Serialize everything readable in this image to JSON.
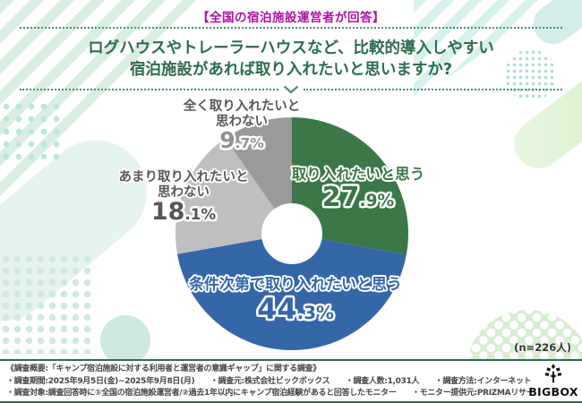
{
  "page": {
    "header_badge": "【全国の宿泊施設運営者が回答】",
    "title_line1": "ログハウスやトレーラーハウスなど、比較的導入しやすい",
    "title_line2": "宿泊施設があれば取り入れたいと思いますか?"
  },
  "chart_data": {
    "type": "pie",
    "subtype": "donut",
    "title": "ログハウスやトレーラーハウスなど、比較的導入しやすい宿泊施設があれば取り入れたいと思いますか?",
    "order": "clockwise-from-top",
    "n_note": "(n=226人)",
    "segments": [
      {
        "label": "取り入れたいと思う",
        "value": 27.9,
        "display": "27.9%",
        "color": "#3c7847"
      },
      {
        "label": "条件次第で取り入れたいと思う",
        "value": 44.3,
        "display": "44.3%",
        "color": "#3566a8"
      },
      {
        "label": "あまり取り入れたいと\n思わない",
        "value": 18.1,
        "display": "18.1%",
        "color": "#bfbfbf"
      },
      {
        "label": "全く取り入れたいと\n思わない",
        "value": 9.7,
        "display": "9.7%",
        "color": "#9a9a9a"
      }
    ]
  },
  "footer": {
    "lines": [
      "《調査概要:「キャンプ宿泊施設に対する利用者と運営者の意識ギャップ」に関する調査》",
      "・調査期間:2025年9月5日(金)~2025年9月8日(月)　　・調査元:株式会社ビックボックス　　・調査人数:1,031人　　・調査方法:インターネット調査",
      "・調査対象:調査回答時に①全国の宿泊施設運営者/②過去1年以内にキャンプ宿泊経験があると回答したモニター　　・モニター提供元:PRIZMAリサーチ"
    ],
    "logo_text": "BIGBOX"
  },
  "colors": {
    "header_badge": "#ac13a1",
    "title_text": "#2d6c4c",
    "dotted_rule": "#4f8d6c",
    "footer_rule": "#2c6e4c",
    "segment_green": "#3c7847",
    "segment_blue": "#3566a8",
    "segment_light_gray": "#bfbfbf",
    "segment_dark_gray": "#9a9a9a"
  }
}
